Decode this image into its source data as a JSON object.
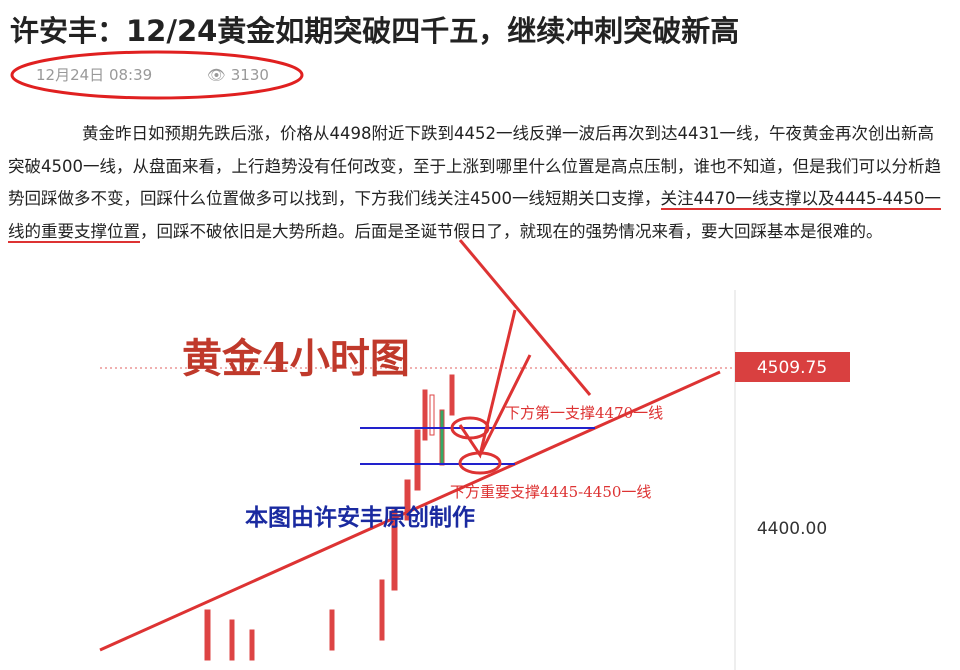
{
  "header": {
    "title": "许安丰：12/24黄金如期突破四千五，继续冲刺突破新高",
    "date": "12月24日 08:39",
    "views": "3130"
  },
  "paragraph": {
    "before": "黄金昨日如预期先跌后涨，价格从4498附近下跌到4452一线反弹一波后再次到达4431一线，午夜黄金再次创出新高突破4500一线，从盘面来看，上行趋势没有任何改变，至于上涨到哪里什么位置是高点压制，谁也不知道，但是我们可以分析趋势回踩做多不变，回踩什么位置做多可以找到，下方我们线关注4500一线短期关口支撑，",
    "underlined": "关注4470一线支撑以及4445-4450一线的重要支撑位置",
    "after": "，回踩不破依旧是大势所趋。后面是圣诞节假日了，就现在的强势情况来看，要大回踩基本是很难的。"
  },
  "image": {
    "title": "黄金4小时图",
    "price_tag": "4509.75",
    "axis_label": "4400.00",
    "support_1": "下方第一支撑4470一线",
    "support_2": "下方重要支撑4445-4450一线",
    "credit": "本图由许安丰原创制作"
  }
}
